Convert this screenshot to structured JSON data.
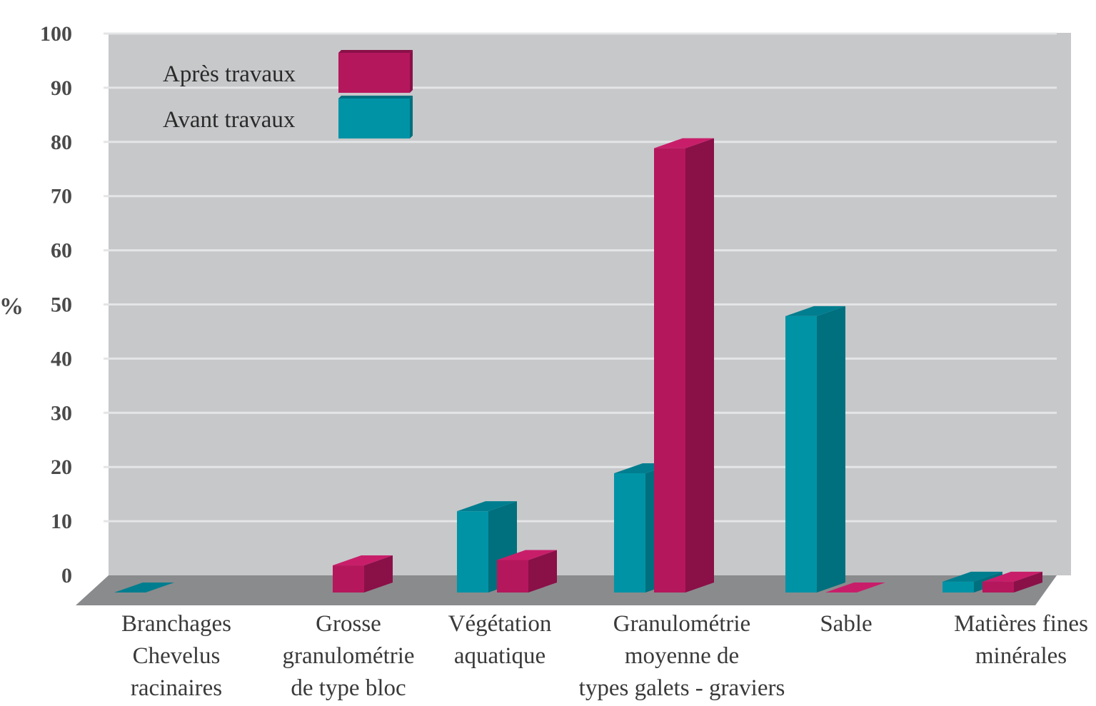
{
  "chart_data": {
    "type": "bar",
    "ylabel": "%",
    "ylim": [
      0,
      100
    ],
    "yticks": [
      0,
      10,
      20,
      30,
      40,
      50,
      60,
      70,
      80,
      90,
      100
    ],
    "grid": true,
    "legend_position": "top-left",
    "categories": [
      [
        "Branchages",
        "Chevelus",
        "racinaires"
      ],
      [
        "Grosse",
        "granulométrie",
        "de type bloc"
      ],
      [
        "Végétation",
        "aquatique"
      ],
      [
        "Granulométrie",
        "moyenne de",
        "types galets - graviers"
      ],
      [
        "Sable"
      ],
      [
        "Matières fines",
        "minérales"
      ]
    ],
    "series": [
      {
        "name": "Avant travaux",
        "color": "#0093a6",
        "values": [
          0,
          0,
          15,
          22,
          51,
          2
        ]
      },
      {
        "name": "Après travaux",
        "color": "#b5175d",
        "values": [
          0,
          5,
          6,
          82,
          0,
          2
        ]
      }
    ],
    "legend": [
      {
        "label": "Après travaux",
        "color": "#b5175d"
      },
      {
        "label": "Avant travaux",
        "color": "#0093a6"
      }
    ],
    "colors": {
      "wall": "#c7c8ca",
      "floor": "#8a8b8d",
      "grid": "#e4e5e6",
      "teal_side": "#006f7e",
      "teal_top": "#007e8f",
      "magenta_side": "#8a1048",
      "magenta_top": "#c81e6a"
    }
  }
}
